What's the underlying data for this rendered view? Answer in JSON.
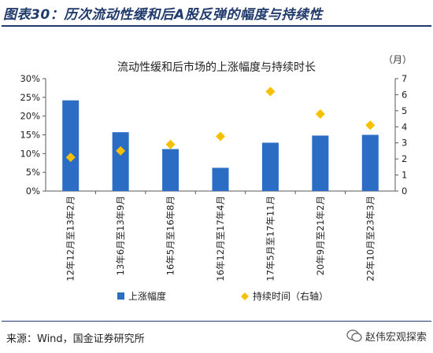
{
  "figure_title": "图表30：历次流动性缓和后A股反弹的幅度与持续性",
  "source_text": "来源：Wind，国金证券研究所",
  "watermark_text": "赵伟宏观探索",
  "colors": {
    "bar": "#2b6cc4",
    "marker": "#f5c000",
    "title": "#1f3a6b",
    "axis": "#595959"
  },
  "chart_data": {
    "type": "bar",
    "title": "流动性缓和后市场的上涨幅度与持续时长",
    "right_axis_unit": "（月）",
    "categories": [
      "12年12月至13年2月",
      "13年6月至13年9月",
      "16年5月至16年8月",
      "16年12月至17年4月",
      "17年5月至17年11月",
      "20年9月至21年2月",
      "22年10月至23年3月"
    ],
    "series": [
      {
        "name": "上涨幅度",
        "type": "bar",
        "axis": "left",
        "values": [
          24.2,
          15.7,
          11.2,
          6.2,
          12.9,
          14.8,
          15.0
        ]
      },
      {
        "name": "持续时间（右轴）",
        "type": "scatter",
        "axis": "right",
        "marker": "diamond",
        "values": [
          2.1,
          2.5,
          2.9,
          3.4,
          6.2,
          4.8,
          4.1
        ]
      }
    ],
    "left_axis": {
      "min": 0,
      "max": 30,
      "step": 5,
      "tick_labels": [
        "0%",
        "5%",
        "10%",
        "15%",
        "20%",
        "25%",
        "30%"
      ]
    },
    "right_axis": {
      "min": 0,
      "max": 7,
      "step": 1,
      "tick_labels": [
        "0",
        "1",
        "2",
        "3",
        "4",
        "5",
        "6",
        "7"
      ]
    },
    "grid": false,
    "legend_position": "bottom"
  }
}
